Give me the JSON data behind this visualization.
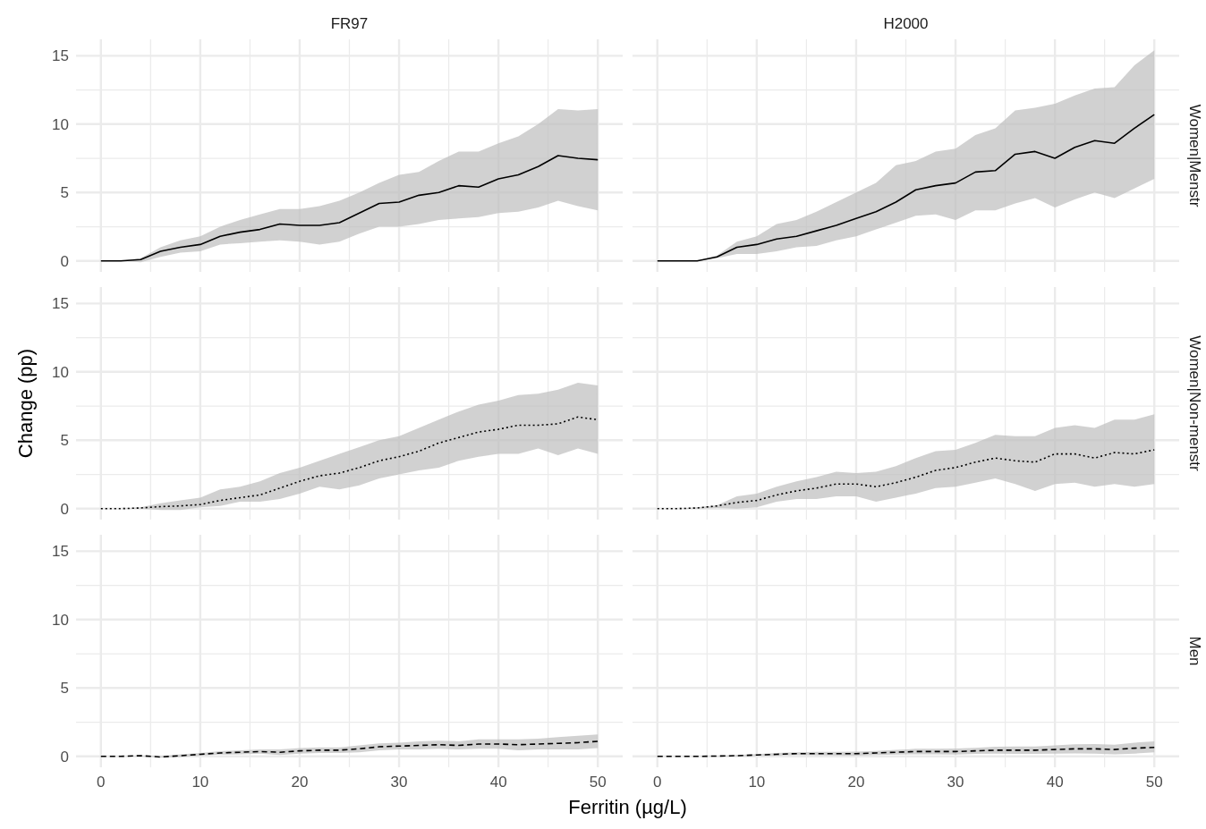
{
  "chart_data": [
    {
      "type": "line",
      "title": "FR97",
      "xlim": [
        -2.5,
        52.5
      ],
      "ylim": [
        -0.8,
        16.2
      ],
      "xticks": [
        0,
        {
          "value": 5,
          "label": null
        },
        10,
        {
          "value": 15,
          "label": null
        },
        20,
        {
          "value": 25,
          "label": null
        },
        30,
        {
          "value": 35,
          "label": null
        },
        40,
        {
          "value": 45,
          "label": null
        },
        50
      ],
      "yticks": [
        0,
        {
          "value": 2.5,
          "label": null
        },
        5,
        {
          "value": 7.5,
          "label": null
        },
        10,
        {
          "value": 12.5,
          "label": null
        },
        15
      ],
      "grid": true,
      "tick_labels": "y",
      "x": [
        0,
        2,
        4,
        6,
        8,
        10,
        12,
        14,
        16,
        18,
        20,
        22,
        24,
        26,
        28,
        30,
        32,
        34,
        36,
        38,
        40,
        42,
        44,
        46,
        48,
        50
      ],
      "series": [
        {
          "color": "#000000",
          "line_style": "solid",
          "values": [
            0,
            0,
            0.1,
            0.7,
            1.0,
            1.2,
            1.8,
            2.1,
            2.3,
            2.7,
            2.6,
            2.6,
            2.8,
            3.5,
            4.2,
            4.3,
            4.8,
            5.0,
            5.5,
            5.4,
            6.0,
            6.3,
            6.9,
            7.7,
            7.5,
            7.4
          ],
          "upper": [
            0,
            0,
            0.2,
            1.0,
            1.5,
            1.8,
            2.5,
            3.0,
            3.4,
            3.8,
            3.8,
            4.0,
            4.4,
            5.0,
            5.7,
            6.3,
            6.5,
            7.3,
            8.0,
            8.0,
            8.6,
            9.1,
            10.0,
            11.1,
            11.0,
            11.1
          ],
          "lower": [
            0,
            0,
            -0.1,
            0.3,
            0.6,
            0.7,
            1.2,
            1.3,
            1.4,
            1.5,
            1.4,
            1.2,
            1.4,
            2.0,
            2.5,
            2.5,
            2.7,
            3.0,
            3.1,
            3.2,
            3.5,
            3.6,
            3.9,
            4.4,
            4.0,
            3.7
          ]
        }
      ]
    },
    {
      "type": "line",
      "title": "H2000",
      "y2label": "Women|Menstr",
      "xlim": [
        -2.5,
        52.5
      ],
      "ylim": [
        -0.8,
        16.2
      ],
      "xticks": [
        0,
        {
          "value": 5,
          "label": null
        },
        10,
        {
          "value": 15,
          "label": null
        },
        20,
        {
          "value": 25,
          "label": null
        },
        30,
        {
          "value": 35,
          "label": null
        },
        40,
        {
          "value": 45,
          "label": null
        },
        50
      ],
      "yticks": [
        0,
        {
          "value": 2.5,
          "label": null
        },
        5,
        {
          "value": 7.5,
          "label": null
        },
        10,
        {
          "value": 12.5,
          "label": null
        },
        15
      ],
      "grid": true,
      "tick_labels": false,
      "x": [
        0,
        2,
        4,
        6,
        8,
        10,
        12,
        14,
        16,
        18,
        20,
        22,
        24,
        26,
        28,
        30,
        32,
        34,
        36,
        38,
        40,
        42,
        44,
        46,
        48,
        50
      ],
      "series": [
        {
          "color": "#000000",
          "line_style": "solid",
          "values": [
            0,
            0,
            0,
            0.3,
            1.0,
            1.2,
            1.6,
            1.8,
            2.2,
            2.6,
            3.1,
            3.6,
            4.3,
            5.2,
            5.5,
            5.7,
            6.5,
            6.6,
            7.8,
            8.0,
            7.5,
            8.3,
            8.8,
            8.6,
            9.7,
            10.7
          ],
          "upper": [
            0,
            0,
            0,
            0.4,
            1.4,
            1.8,
            2.7,
            3.0,
            3.6,
            4.3,
            5.0,
            5.7,
            7.0,
            7.3,
            8.0,
            8.2,
            9.2,
            9.7,
            11.0,
            11.2,
            11.5,
            12.1,
            12.6,
            12.7,
            14.3,
            15.4
          ],
          "lower": [
            0,
            0,
            0,
            0.2,
            0.5,
            0.5,
            0.7,
            1.0,
            1.1,
            1.5,
            1.8,
            2.3,
            2.8,
            3.3,
            3.4,
            3.0,
            3.7,
            3.7,
            4.2,
            4.6,
            3.9,
            4.5,
            5.0,
            4.6,
            5.3,
            6.0
          ]
        }
      ]
    },
    {
      "type": "line",
      "ylabel": "Change (pp)",
      "xlim": [
        -2.5,
        52.5
      ],
      "ylim": [
        -0.8,
        16.2
      ],
      "xticks": [
        0,
        {
          "value": 5,
          "label": null
        },
        10,
        {
          "value": 15,
          "label": null
        },
        20,
        {
          "value": 25,
          "label": null
        },
        30,
        {
          "value": 35,
          "label": null
        },
        40,
        {
          "value": 45,
          "label": null
        },
        50
      ],
      "yticks": [
        0,
        {
          "value": 2.5,
          "label": null
        },
        5,
        {
          "value": 7.5,
          "label": null
        },
        10,
        {
          "value": 12.5,
          "label": null
        },
        15
      ],
      "grid": true,
      "tick_labels": "y",
      "x": [
        0,
        2,
        4,
        6,
        8,
        10,
        12,
        14,
        16,
        18,
        20,
        22,
        24,
        26,
        28,
        30,
        32,
        34,
        36,
        38,
        40,
        42,
        44,
        46,
        48,
        50
      ],
      "series": [
        {
          "color": "#000000",
          "line_style": "dotted",
          "values": [
            0,
            0,
            0.05,
            0.15,
            0.2,
            0.3,
            0.6,
            0.8,
            1.0,
            1.5,
            2.0,
            2.4,
            2.6,
            3.0,
            3.5,
            3.8,
            4.2,
            4.8,
            5.2,
            5.6,
            5.8,
            6.1,
            6.1,
            6.2,
            6.7,
            6.5
          ],
          "upper": [
            0,
            0,
            0.1,
            0.4,
            0.6,
            0.8,
            1.4,
            1.6,
            2.0,
            2.6,
            3.0,
            3.5,
            4.0,
            4.5,
            5.0,
            5.3,
            5.9,
            6.5,
            7.1,
            7.6,
            7.9,
            8.3,
            8.4,
            8.7,
            9.2,
            9.0
          ],
          "lower": [
            0,
            0,
            0,
            -0.1,
            -0.1,
            0.1,
            0.2,
            0.5,
            0.5,
            0.7,
            1.1,
            1.6,
            1.4,
            1.7,
            2.2,
            2.5,
            2.8,
            3.0,
            3.5,
            3.8,
            4.0,
            4.0,
            4.4,
            3.9,
            4.4,
            4.0
          ]
        }
      ]
    },
    {
      "type": "line",
      "y2label": "Women|Non-menstr",
      "xlim": [
        -2.5,
        52.5
      ],
      "ylim": [
        -0.8,
        16.2
      ],
      "xticks": [
        0,
        {
          "value": 5,
          "label": null
        },
        10,
        {
          "value": 15,
          "label": null
        },
        20,
        {
          "value": 25,
          "label": null
        },
        30,
        {
          "value": 35,
          "label": null
        },
        40,
        {
          "value": 45,
          "label": null
        },
        50
      ],
      "yticks": [
        0,
        {
          "value": 2.5,
          "label": null
        },
        5,
        {
          "value": 7.5,
          "label": null
        },
        10,
        {
          "value": 12.5,
          "label": null
        },
        15
      ],
      "grid": true,
      "tick_labels": false,
      "x": [
        0,
        2,
        4,
        6,
        8,
        10,
        12,
        14,
        16,
        18,
        20,
        22,
        24,
        26,
        28,
        30,
        32,
        34,
        36,
        38,
        40,
        42,
        44,
        46,
        48,
        50
      ],
      "series": [
        {
          "color": "#000000",
          "line_style": "dotted",
          "values": [
            0,
            0,
            0.05,
            0.2,
            0.45,
            0.6,
            1.0,
            1.3,
            1.5,
            1.8,
            1.8,
            1.6,
            1.9,
            2.3,
            2.8,
            3.0,
            3.4,
            3.7,
            3.5,
            3.4,
            4.0,
            4.0,
            3.7,
            4.1,
            4.0,
            4.3
          ],
          "upper": [
            0,
            0,
            0.1,
            0.25,
            0.9,
            1.1,
            1.6,
            2.0,
            2.3,
            2.7,
            2.6,
            2.7,
            3.1,
            3.7,
            4.2,
            4.3,
            4.8,
            5.4,
            5.3,
            5.3,
            5.9,
            6.1,
            5.9,
            6.5,
            6.5,
            6.9
          ],
          "lower": [
            0,
            0,
            0,
            0.05,
            0,
            0.1,
            0.5,
            0.7,
            0.7,
            0.9,
            0.9,
            0.5,
            0.8,
            1.1,
            1.5,
            1.6,
            1.9,
            2.2,
            1.8,
            1.3,
            1.8,
            1.9,
            1.6,
            1.8,
            1.6,
            1.8
          ]
        }
      ]
    },
    {
      "type": "line",
      "xlabel": "Ferritin (µg/L)",
      "xlim": [
        -2.5,
        52.5
      ],
      "ylim": [
        -0.8,
        16.2
      ],
      "xticks": [
        0,
        {
          "value": 5,
          "label": null
        },
        10,
        {
          "value": 15,
          "label": null
        },
        20,
        {
          "value": 25,
          "label": null
        },
        30,
        {
          "value": 35,
          "label": null
        },
        40,
        {
          "value": 45,
          "label": null
        },
        50
      ],
      "yticks": [
        0,
        {
          "value": 2.5,
          "label": null
        },
        5,
        {
          "value": 7.5,
          "label": null
        },
        10,
        {
          "value": 12.5,
          "label": null
        },
        15
      ],
      "grid": true,
      "x": [
        0,
        2,
        4,
        6,
        8,
        10,
        12,
        14,
        16,
        18,
        20,
        22,
        24,
        26,
        28,
        30,
        32,
        34,
        36,
        38,
        40,
        42,
        44,
        46,
        48,
        50
      ],
      "series": [
        {
          "color": "#000000",
          "line_style": "dashed",
          "values": [
            0,
            0,
            0.05,
            -0.05,
            0.05,
            0.15,
            0.25,
            0.3,
            0.35,
            0.3,
            0.4,
            0.45,
            0.45,
            0.55,
            0.7,
            0.75,
            0.8,
            0.85,
            0.8,
            0.9,
            0.9,
            0.85,
            0.9,
            0.95,
            1.0,
            1.1
          ],
          "upper": [
            0,
            0,
            0.07,
            0,
            0.15,
            0.25,
            0.37,
            0.45,
            0.5,
            0.5,
            0.6,
            0.65,
            0.65,
            0.8,
            0.95,
            1.0,
            1.1,
            1.15,
            1.1,
            1.25,
            1.25,
            1.25,
            1.3,
            1.4,
            1.5,
            1.6
          ],
          "lower": [
            0,
            0,
            0.03,
            -0.1,
            -0.05,
            0.05,
            0.13,
            0.15,
            0.2,
            0.1,
            0.2,
            0.25,
            0.25,
            0.3,
            0.45,
            0.5,
            0.5,
            0.55,
            0.5,
            0.55,
            0.55,
            0.45,
            0.5,
            0.5,
            0.5,
            0.6
          ]
        }
      ]
    },
    {
      "type": "line",
      "y2label": "Men",
      "xlim": [
        -2.5,
        52.5
      ],
      "ylim": [
        -0.8,
        16.2
      ],
      "xticks": [
        0,
        {
          "value": 5,
          "label": null
        },
        10,
        {
          "value": 15,
          "label": null
        },
        20,
        {
          "value": 25,
          "label": null
        },
        30,
        {
          "value": 35,
          "label": null
        },
        40,
        {
          "value": 45,
          "label": null
        },
        50
      ],
      "yticks": [
        0,
        {
          "value": 2.5,
          "label": null
        },
        5,
        {
          "value": 7.5,
          "label": null
        },
        10,
        {
          "value": 12.5,
          "label": null
        },
        15
      ],
      "grid": true,
      "tick_labels": "x",
      "x": [
        0,
        2,
        4,
        6,
        8,
        10,
        12,
        14,
        16,
        18,
        20,
        22,
        24,
        26,
        28,
        30,
        32,
        34,
        36,
        38,
        40,
        42,
        44,
        46,
        48,
        50
      ],
      "series": [
        {
          "color": "#000000",
          "line_style": "dashed",
          "values": [
            0,
            0,
            0,
            0.02,
            0.05,
            0.1,
            0.15,
            0.2,
            0.2,
            0.2,
            0.2,
            0.25,
            0.3,
            0.35,
            0.35,
            0.35,
            0.4,
            0.45,
            0.45,
            0.45,
            0.5,
            0.55,
            0.55,
            0.5,
            0.6,
            0.65
          ],
          "upper": [
            0,
            0,
            0,
            0.04,
            0.1,
            0.17,
            0.25,
            0.3,
            0.32,
            0.33,
            0.35,
            0.4,
            0.47,
            0.55,
            0.55,
            0.57,
            0.62,
            0.7,
            0.72,
            0.72,
            0.8,
            0.88,
            0.9,
            0.85,
            1.0,
            1.1
          ],
          "lower": [
            0,
            0,
            0,
            0,
            0,
            0.03,
            0.05,
            0.1,
            0.08,
            0.07,
            0.05,
            0.1,
            0.13,
            0.15,
            0.15,
            0.13,
            0.18,
            0.2,
            0.18,
            0.18,
            0.2,
            0.22,
            0.2,
            0.15,
            0.2,
            0.3
          ]
        }
      ]
    }
  ]
}
